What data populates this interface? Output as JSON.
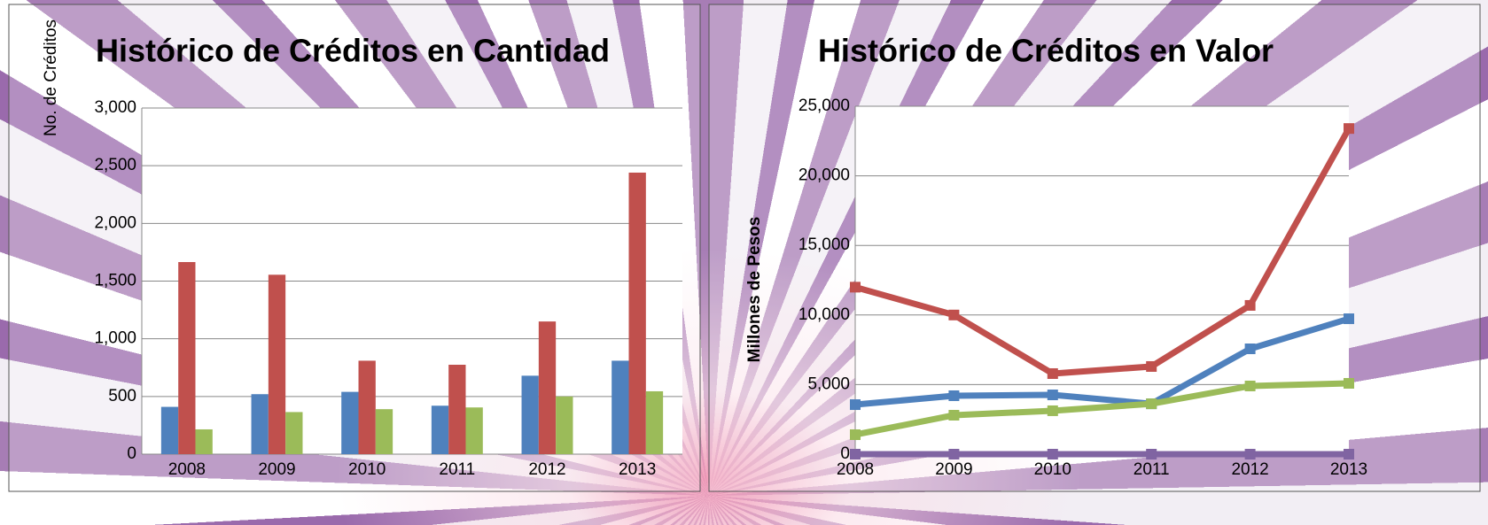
{
  "chart_data": [
    {
      "type": "bar",
      "title": "Histórico de Créditos en Cantidad",
      "y_label": "No. de Créditos",
      "categories": [
        "2008",
        "2009",
        "2010",
        "2011",
        "2012",
        "2013"
      ],
      "series": [
        {
          "color": "#4f81bd",
          "values": [
            410,
            520,
            540,
            420,
            680,
            810
          ]
        },
        {
          "color": "#c0504d",
          "values": [
            1665,
            1555,
            810,
            775,
            1150,
            2440
          ]
        },
        {
          "color": "#9bbb59",
          "values": [
            215,
            365,
            390,
            405,
            500,
            545
          ]
        }
      ],
      "ylim": [
        0,
        3000
      ],
      "yticks": [
        0,
        500,
        {
          "value": 1000,
          "label": "1,000"
        },
        {
          "value": 1500,
          "label": "1,500"
        },
        {
          "value": 2000,
          "label": "2,000"
        },
        {
          "value": 2500,
          "label": "2,500"
        },
        {
          "value": 3000,
          "label": "3,000"
        }
      ],
      "grid": true
    },
    {
      "type": "line",
      "title": "Histórico de Créditos en Valor",
      "y_label": "Millones de Pesos",
      "categories": [
        "2008",
        "2009",
        "2010",
        "2011",
        "2012",
        "2013"
      ],
      "series": [
        {
          "color": "#c0504d",
          "values": [
            12000,
            10000,
            5790,
            6300,
            10690,
            23400
          ]
        },
        {
          "color": "#4f81bd",
          "values": [
            3560,
            4200,
            4260,
            3620,
            7570,
            9730
          ]
        },
        {
          "color": "#9bbb59",
          "values": [
            1400,
            2800,
            3120,
            3620,
            4900,
            5090
          ]
        },
        {
          "color": "#8064a2",
          "values": [
            0,
            0,
            0,
            0,
            0,
            0
          ]
        }
      ],
      "ylim": [
        0,
        25000
      ],
      "yticks": [
        0,
        {
          "value": 5000,
          "label": "5,000"
        },
        {
          "value": 10000,
          "label": "10,000"
        },
        {
          "value": 15000,
          "label": "15,000"
        },
        {
          "value": 20000,
          "label": "20,000"
        },
        {
          "value": 25000,
          "label": "25,000"
        }
      ],
      "grid": true
    }
  ]
}
